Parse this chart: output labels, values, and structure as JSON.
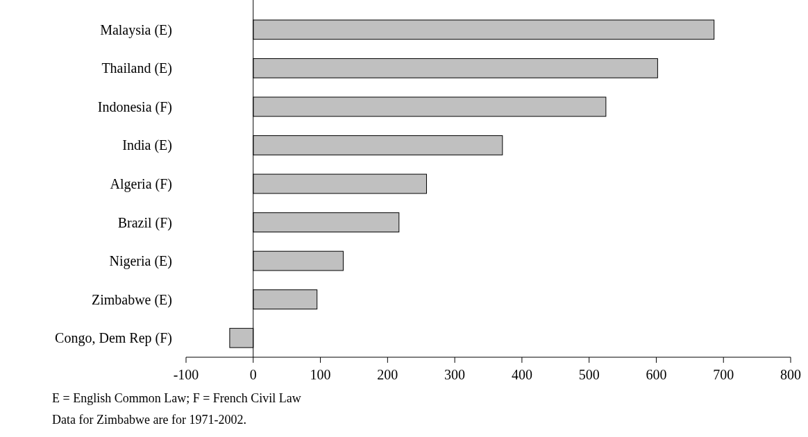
{
  "chart_data": {
    "type": "bar",
    "orientation": "horizontal",
    "categories": [
      "Malaysia (E)",
      "Thailand (E)",
      "Indonesia (F)",
      "India (E)",
      "Algeria (F)",
      "Brazil (F)",
      "Nigeria (E)",
      "Zimbabwe (E)",
      "Congo, Dem Rep (F)"
    ],
    "values": [
      686,
      602,
      525,
      371,
      258,
      217,
      134,
      95,
      -35
    ],
    "color": "#c0c0c0",
    "xlim": [
      -100,
      800
    ],
    "xticks": [
      -100,
      0,
      100,
      200,
      300,
      400,
      500,
      600,
      700,
      800
    ],
    "annotations": [
      "E = English Common Law; F = French Civil Law",
      "Data for Zimbabwe are for 1971-2002."
    ]
  }
}
